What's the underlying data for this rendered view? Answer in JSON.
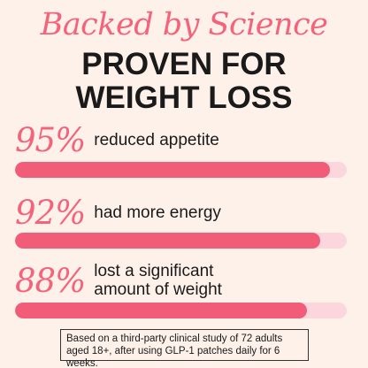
{
  "header": {
    "kicker": "Backed by Science",
    "headline_line1": "PROVEN FOR",
    "headline_line2": "WEIGHT LOSS"
  },
  "stats": [
    {
      "percent_label": "95%",
      "value": 0.95,
      "desc_line1": "reduced appetite",
      "desc_line2": ""
    },
    {
      "percent_label": "92%",
      "value": 0.92,
      "desc_line1": "had more energy",
      "desc_line2": ""
    },
    {
      "percent_label": "88%",
      "value": 0.88,
      "desc_line1": "lost a significant",
      "desc_line2": "amount of weight"
    }
  ],
  "footnote": {
    "line1": "Based on a third-party clinical study of 72 adults",
    "line2": "aged 18+, after using GLP-1 patches daily for 6 weeks."
  },
  "colors": {
    "accent": "#f4637a",
    "bar_fill": "#f15d78",
    "bar_track": "#fbd7dd",
    "background": "#fdf1ea"
  }
}
